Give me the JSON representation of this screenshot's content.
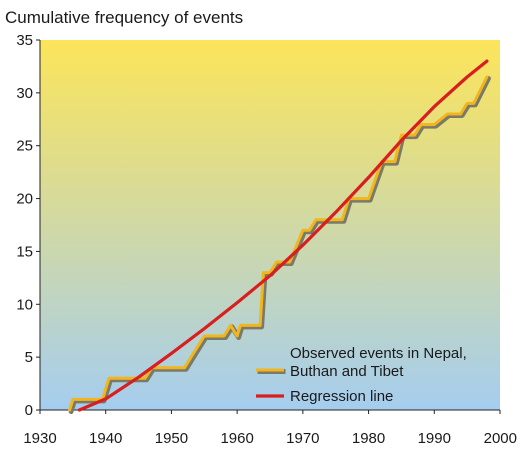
{
  "chart_data": {
    "type": "line",
    "title": "Cumulative frequency of events",
    "xlabel": "",
    "ylabel": "",
    "xlim": [
      1930,
      2000
    ],
    "ylim": [
      0,
      35
    ],
    "x_ticks": [
      "1930",
      "1940",
      "1950",
      "1960",
      "1970",
      "1980",
      "1990",
      "2000"
    ],
    "y_ticks": [
      "0",
      "5",
      "10",
      "15",
      "20",
      "25",
      "30",
      "35"
    ],
    "grid": false,
    "legend_position": "bottom-right",
    "series": [
      {
        "name": "Observed events in Nepal, Buthan and Tibet",
        "name_lines": [
          "Observed events in Nepal,",
          "Buthan and Tibet"
        ],
        "color": "#f2b61c",
        "points": [
          [
            1934.5,
            0
          ],
          [
            1935,
            1
          ],
          [
            1939.5,
            1
          ],
          [
            1940.5,
            3
          ],
          [
            1946,
            3
          ],
          [
            1947,
            4
          ],
          [
            1952,
            4
          ],
          [
            1953,
            5
          ],
          [
            1954,
            6
          ],
          [
            1955,
            7
          ],
          [
            1958,
            7
          ],
          [
            1959,
            8
          ],
          [
            1960,
            7
          ],
          [
            1960.5,
            8
          ],
          [
            1962.5,
            8
          ],
          [
            1963,
            8
          ],
          [
            1963.5,
            8
          ],
          [
            1964,
            13
          ],
          [
            1965,
            13
          ],
          [
            1966,
            14
          ],
          [
            1968,
            14
          ],
          [
            1970,
            17
          ],
          [
            1971,
            17
          ],
          [
            1972,
            18
          ],
          [
            1976,
            18
          ],
          [
            1977,
            20
          ],
          [
            1980,
            20
          ],
          [
            1982,
            23.5
          ],
          [
            1984,
            23.5
          ],
          [
            1985,
            26
          ],
          [
            1987,
            26
          ],
          [
            1988,
            27
          ],
          [
            1990,
            27
          ],
          [
            1992,
            28
          ],
          [
            1994,
            28
          ],
          [
            1995,
            29
          ],
          [
            1996,
            29
          ],
          [
            1998,
            31.5
          ]
        ]
      },
      {
        "name": "Regression line",
        "color": "#d81e1e",
        "points": [
          [
            1936,
            0
          ],
          [
            1940,
            1.05
          ],
          [
            1945,
            3.1
          ],
          [
            1950,
            5.35
          ],
          [
            1955,
            7.7
          ],
          [
            1960,
            10.15
          ],
          [
            1965,
            12.7
          ],
          [
            1970,
            15.6
          ],
          [
            1975,
            18.7
          ],
          [
            1980,
            22
          ],
          [
            1985,
            25.5
          ],
          [
            1990,
            28.7
          ],
          [
            1995,
            31.5
          ],
          [
            1998,
            33
          ]
        ]
      }
    ],
    "colors": {
      "background_top": "#fce55a",
      "background_bottom": "#a5cdef",
      "axis": "#222222",
      "observed_shadow": "#7a7a6a"
    }
  }
}
